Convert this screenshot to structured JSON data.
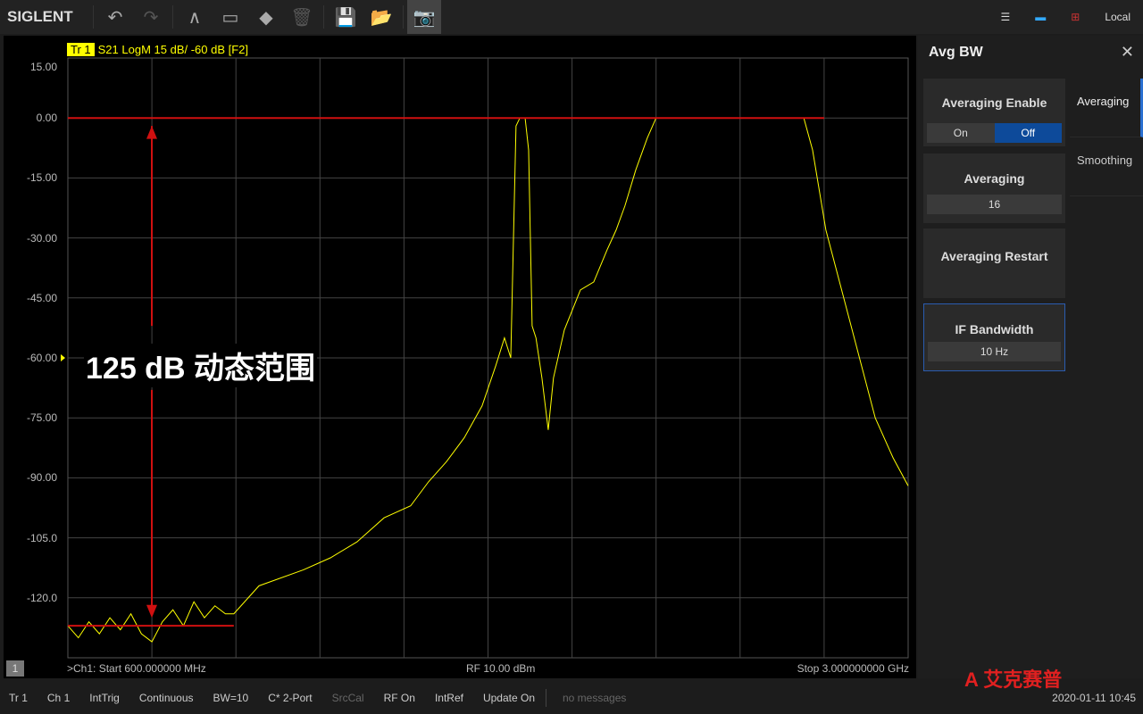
{
  "toolbar": {
    "logo": "SIGLENT",
    "status_right": "Local"
  },
  "trace": {
    "id": "Tr 1",
    "label": "S21 LogM 15 dB/ -60 dB [F2]",
    "color": "#ffff00"
  },
  "annotation": {
    "text": "125 dB 动态范围",
    "color": "#d01010"
  },
  "footer": {
    "channel": "1",
    "start": ">Ch1: Start 600.000000 MHz",
    "power": "RF 10.00 dBm",
    "stop": "Stop 3.000000000 GHz"
  },
  "chart_data": {
    "type": "line",
    "ylim": [
      -135,
      15
    ],
    "xlim": [
      0.6,
      3.0
    ],
    "x_unit": "GHz",
    "y_unit": "dB",
    "yticks": [
      "15.00",
      "0.00",
      "-15.00",
      "-30.00",
      "-45.00",
      "-60.00",
      "-75.00",
      "-90.00",
      "-105.0",
      "-120.0"
    ],
    "reference_level": -60,
    "grid": true,
    "series": [
      {
        "name": "S21",
        "x": [
          0.6,
          0.63,
          0.66,
          0.69,
          0.72,
          0.75,
          0.78,
          0.81,
          0.84,
          0.87,
          0.9,
          0.93,
          0.96,
          0.99,
          1.02,
          1.05,
          1.074,
          1.146,
          1.273,
          1.35,
          1.426,
          1.503,
          1.579,
          1.63,
          1.681,
          1.732,
          1.783,
          1.822,
          1.847,
          1.865,
          1.88,
          1.891,
          1.906,
          1.916,
          1.926,
          1.937,
          1.954,
          1.972,
          1.987,
          2.018,
          2.064,
          2.102,
          2.14,
          2.166,
          2.191,
          2.222,
          2.255,
          2.28,
          2.702,
          2.727,
          2.765,
          2.816,
          2.867,
          2.906,
          2.957,
          3.0
        ],
        "y": [
          -127,
          -130,
          -126,
          -129,
          -125,
          -128,
          -124,
          -129,
          -131,
          -126,
          -123,
          -127,
          -121,
          -125,
          -122,
          -124,
          -124,
          -117,
          -113,
          -110,
          -106,
          -100,
          -97,
          -91,
          -86,
          -80,
          -72,
          -62,
          -55,
          -60,
          -2,
          0,
          0,
          -8,
          -52,
          -55,
          -65,
          -78,
          -65,
          -53,
          -43,
          -41,
          -33,
          -28,
          -22,
          -13,
          -5,
          0,
          0,
          -8,
          -28,
          -45,
          -62,
          -75,
          -85,
          -92
        ]
      }
    ]
  },
  "panel": {
    "title": "Avg BW",
    "cards": [
      {
        "title": "Averaging Enable",
        "on": "On",
        "off": "Off"
      },
      {
        "title": "Averaging",
        "value": "16"
      },
      {
        "title": "Averaging Restart"
      },
      {
        "title": "IF Bandwidth",
        "value": "10 Hz"
      }
    ],
    "tabs": [
      "Averaging",
      "Smoothing"
    ]
  },
  "status": {
    "items": [
      "Tr 1",
      "Ch 1",
      "IntTrig",
      "Continuous",
      "BW=10",
      "C* 2-Port",
      "SrcCal",
      "RF On",
      "IntRef",
      "Update On"
    ],
    "message": "no messages",
    "datetime": "2020-01-11 10:45",
    "watermark": "艾克赛普 ACCEXP"
  }
}
